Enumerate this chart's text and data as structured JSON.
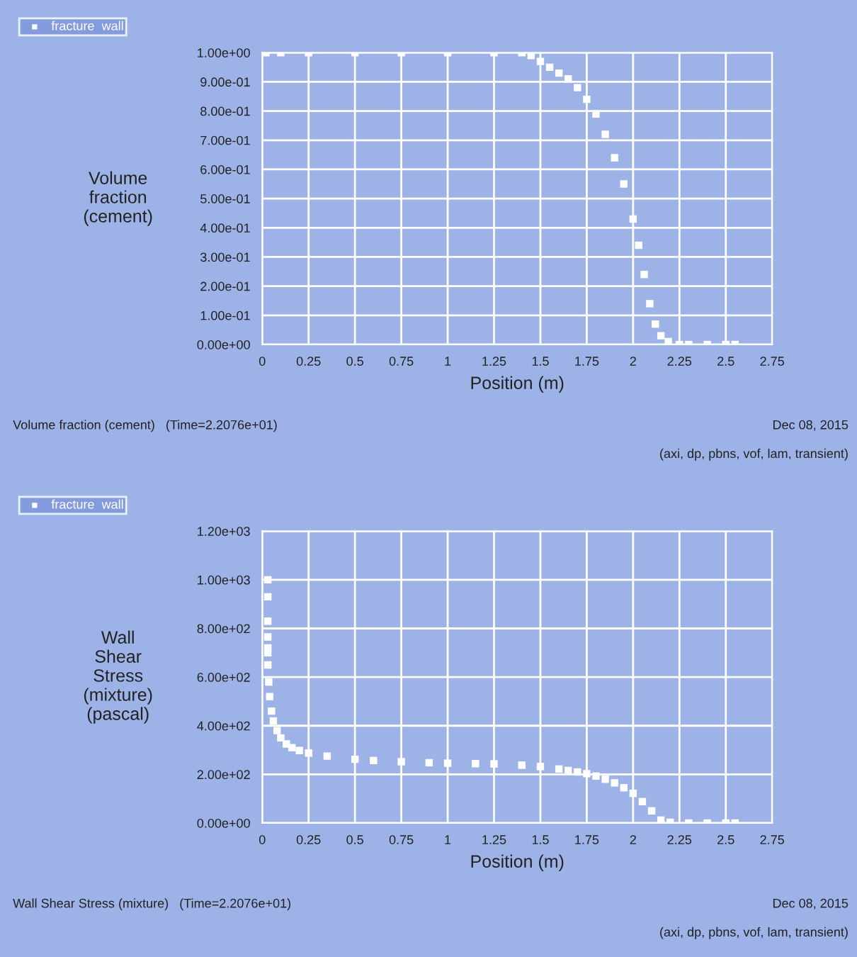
{
  "chart_data": [
    {
      "type": "scatter",
      "ylabel": "Volume\nfraction\n(cement)",
      "xlabel": "Position (m)",
      "series": [
        {
          "name": "fracture  wall",
          "color": "#ffffff",
          "x": [
            0.02,
            0.1,
            0.25,
            0.5,
            0.75,
            1.0,
            1.25,
            1.4,
            1.45,
            1.5,
            1.55,
            1.6,
            1.65,
            1.7,
            1.75,
            1.8,
            1.85,
            1.9,
            1.95,
            2.0,
            2.03,
            2.06,
            2.09,
            2.12,
            2.15,
            2.19,
            2.25,
            2.3,
            2.4,
            2.5,
            2.55
          ],
          "values": [
            1,
            1,
            1,
            1,
            1,
            1,
            1,
            1,
            0.99,
            0.97,
            0.95,
            0.93,
            0.91,
            0.88,
            0.84,
            0.79,
            0.72,
            0.64,
            0.55,
            0.43,
            0.34,
            0.24,
            0.14,
            0.07,
            0.03,
            0.01,
            0,
            0,
            0,
            0,
            0
          ]
        }
      ],
      "xlim": [
        0,
        2.75
      ],
      "xticks": [
        0,
        0.25,
        0.5,
        0.75,
        1,
        1.25,
        1.5,
        1.75,
        2,
        2.25,
        2.5,
        2.75
      ],
      "ylim": [
        0,
        1
      ],
      "yticks": [
        {
          "value": 0,
          "label": "0.00e+00"
        },
        {
          "value": 0.1,
          "label": "1.00e-01"
        },
        {
          "value": 0.2,
          "label": "2.00e-01"
        },
        {
          "value": 0.3,
          "label": "3.00e-01"
        },
        {
          "value": 0.4,
          "label": "4.00e-01"
        },
        {
          "value": 0.5,
          "label": "5.00e-01"
        },
        {
          "value": 0.6,
          "label": "6.00e-01"
        },
        {
          "value": 0.7,
          "label": "7.00e-01"
        },
        {
          "value": 0.8,
          "label": "8.00e-01"
        },
        {
          "value": 0.9,
          "label": "9.00e-01"
        },
        {
          "value": 1,
          "label": "1.00e+00"
        }
      ],
      "grid": true,
      "legend": "top left",
      "marker": "square",
      "annotations": [
        "Volume fraction (cement)   (Time=2.2076e+01)",
        "Dec 08, 2015",
        "(axi, dp, pbns, vof, lam, transient)"
      ]
    },
    {
      "type": "scatter",
      "ylabel": "Wall\nShear\nStress\n(mixture)\n(pascal)",
      "xlabel": "Position (m)",
      "series": [
        {
          "name": "fracture  wall",
          "color": "#ffffff",
          "x": [
            0.03,
            0.03,
            0.03,
            0.03,
            0.03,
            0.03,
            0.03,
            0.035,
            0.04,
            0.05,
            0.06,
            0.08,
            0.1,
            0.13,
            0.16,
            0.2,
            0.25,
            0.35,
            0.5,
            0.6,
            0.75,
            0.9,
            1.0,
            1.15,
            1.25,
            1.4,
            1.5,
            1.6,
            1.65,
            1.7,
            1.75,
            1.8,
            1.85,
            1.9,
            1.95,
            2.0,
            2.05,
            2.1,
            2.15,
            2.2,
            2.3,
            2.4,
            2.5,
            2.55
          ],
          "values": [
            1000,
            930,
            830,
            765,
            720,
            700,
            650,
            580,
            520,
            460,
            420,
            380,
            350,
            325,
            310,
            298,
            288,
            275,
            262,
            257,
            252,
            248,
            246,
            244,
            243,
            238,
            232,
            222,
            216,
            210,
            203,
            193,
            180,
            165,
            145,
            122,
            88,
            50,
            12,
            3,
            0,
            0,
            0,
            0
          ]
        }
      ],
      "xlim": [
        0,
        2.75
      ],
      "xticks": [
        0,
        0.25,
        0.5,
        0.75,
        1,
        1.25,
        1.5,
        1.75,
        2,
        2.25,
        2.5,
        2.75
      ],
      "ylim": [
        0,
        1200
      ],
      "yticks": [
        {
          "value": 0,
          "label": "0.00e+00"
        },
        {
          "value": 200,
          "label": "2.00e+02"
        },
        {
          "value": 400,
          "label": "4.00e+02"
        },
        {
          "value": 600,
          "label": "6.00e+02"
        },
        {
          "value": 800,
          "label": "8.00e+02"
        },
        {
          "value": 1000,
          "label": "1.00e+03"
        },
        {
          "value": 1200,
          "label": "1.20e+03"
        }
      ],
      "grid": true,
      "legend": "top left",
      "marker": "square",
      "annotations": [
        "Wall Shear Stress (mixture)   (Time=2.2076e+01)",
        "Dec 08, 2015",
        "(axi, dp, pbns, vof, lam, transient)"
      ]
    }
  ]
}
